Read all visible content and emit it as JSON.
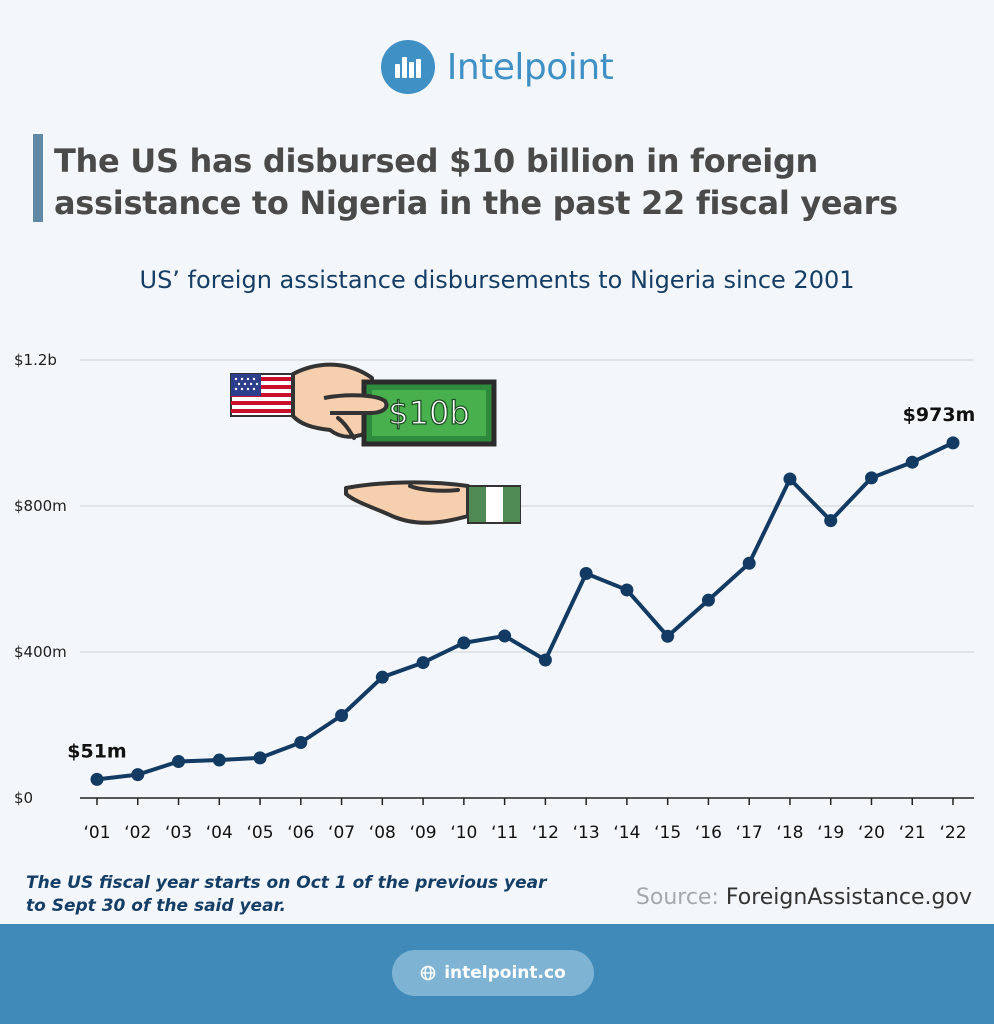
{
  "brand": {
    "name": "Intelpoint"
  },
  "headline": "The US has disbursed $10 billion in foreign assistance to Nigeria in the past 22 fiscal years",
  "illustration": {
    "money_label": "$10b",
    "giver": "United States",
    "receiver": "Nigeria"
  },
  "note": {
    "line1": "The US fiscal year starts on Oct 1 of the previous year",
    "line2": "to Sept 30 of the said year."
  },
  "source": {
    "label": "Source:",
    "value": "ForeignAssistance.gov"
  },
  "footer": {
    "link": "intelpoint.co"
  },
  "colors": {
    "line": "#123a63",
    "accent": "#3f90c4",
    "footer": "#3f8ab8",
    "grid": "#d4d8dc"
  },
  "chart_data": {
    "type": "line",
    "title": "US’ foreign assistance disbursements to Nigeria since 2001",
    "xlabel": "",
    "ylabel": "",
    "categories": [
      "‘01",
      "‘02",
      "‘03",
      "‘04",
      "‘05",
      "‘06",
      "‘07",
      "‘08",
      "‘09",
      "‘10",
      "‘11",
      "‘12",
      "‘13",
      "‘14",
      "‘15",
      "‘16",
      "‘17",
      "‘18",
      "‘19",
      "‘20",
      "‘21",
      "‘22"
    ],
    "values": [
      51,
      64,
      100,
      104,
      110,
      152,
      226,
      331,
      371,
      425,
      444,
      378,
      615,
      570,
      443,
      542,
      643,
      874,
      760,
      877,
      920,
      973
    ],
    "unit": "millions USD",
    "ylim": [
      0,
      1200
    ],
    "yticks": [
      0,
      400,
      800,
      1200
    ],
    "ytick_labels": [
      "$0",
      "$400m",
      "$800m",
      "$1.2b"
    ],
    "annotations": [
      {
        "index": 0,
        "text": "$51m"
      },
      {
        "index": 21,
        "text": "$973m"
      }
    ],
    "grid": true
  }
}
